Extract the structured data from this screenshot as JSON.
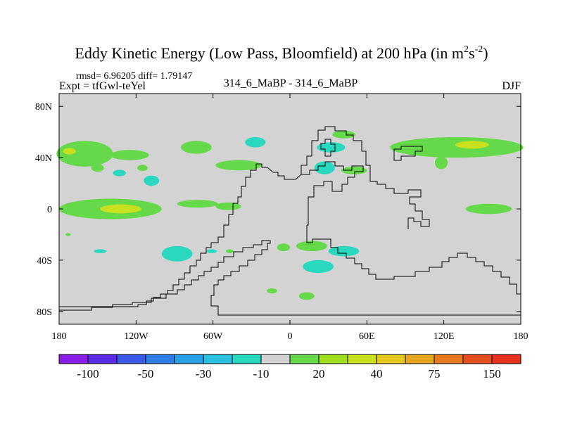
{
  "chart_data": {
    "type": "heatmap",
    "title": "Eddy Kinetic Energy (Low Pass, Bloomfield) at 200 hPa (in m",
    "title_units": {
      "sup1": "2",
      "mid": "s",
      "sup2": "-2",
      "close": ")"
    },
    "stats": "rmsd= 6.96205 diff= 1.79147",
    "expt": "Expt = tfGwl-teYel",
    "subtitle": "314_6_MaBP - 314_6_MaBP",
    "season": "DJF",
    "xlim": [
      -180,
      180
    ],
    "ylim": [
      -90,
      90
    ],
    "x_ticks": [
      {
        "value": -180,
        "label": "180"
      },
      {
        "value": -120,
        "label": "120W"
      },
      {
        "value": -60,
        "label": "60W"
      },
      {
        "value": 0,
        "label": "0"
      },
      {
        "value": 60,
        "label": "60E"
      },
      {
        "value": 120,
        "label": "120E"
      },
      {
        "value": 180,
        "label": "180"
      }
    ],
    "y_ticks": [
      {
        "value": 80,
        "label": "80N"
      },
      {
        "value": 40,
        "label": "40N"
      },
      {
        "value": 0,
        "label": "0"
      },
      {
        "value": -40,
        "label": "40S"
      },
      {
        "value": -80,
        "label": "80S"
      }
    ],
    "background_color": "#d3d3d3",
    "colorbar": {
      "colors": [
        "#8a1ee6",
        "#5a2be6",
        "#3a5ae6",
        "#2d7fe6",
        "#2aa0e6",
        "#2ac0e0",
        "#2ad8c0",
        "#d3d3d3",
        "#66d94a",
        "#9ee01e",
        "#c8e01e",
        "#e6c81e",
        "#e6a51e",
        "#e6781e",
        "#e6501e",
        "#e6321e"
      ],
      "labels": [
        {
          "boundary": 1,
          "text": "-100"
        },
        {
          "boundary": 3,
          "text": "-50"
        },
        {
          "boundary": 5,
          "text": "-30"
        },
        {
          "boundary": 7,
          "text": "-10"
        },
        {
          "boundary": 9,
          "text": "20"
        },
        {
          "boundary": 11,
          "text": "40"
        },
        {
          "boundary": 13,
          "text": "75"
        },
        {
          "boundary": 15,
          "text": "150"
        }
      ]
    },
    "regions": [
      {
        "name": "n-pacific-jet-west",
        "lon": -160,
        "lat": 43,
        "rlon": 22,
        "rlat": 10,
        "color": "#66d94a"
      },
      {
        "name": "n-pacific-jet-west-core",
        "lon": -172,
        "lat": 45,
        "rlon": 5,
        "rlat": 2.5,
        "color": "#c8e01e"
      },
      {
        "name": "n-pacific-jet-mid",
        "lon": -125,
        "lat": 42,
        "rlon": 15,
        "rlat": 4,
        "color": "#66d94a"
      },
      {
        "name": "n-pacific-small-1",
        "lon": -150,
        "lat": 32,
        "rlon": 5,
        "rlat": 3,
        "color": "#66d94a"
      },
      {
        "name": "n-pacific-small-2",
        "lon": -115,
        "lat": 32,
        "rlon": 4,
        "rlat": 2.5,
        "color": "#66d94a"
      },
      {
        "name": "n-pacific-neg-1",
        "lon": -133,
        "lat": 28,
        "rlon": 5,
        "rlat": 2.5,
        "color": "#2ad8c0"
      },
      {
        "name": "n-pacific-neg-2",
        "lon": -108,
        "lat": 22,
        "rlon": 6,
        "rlat": 4,
        "color": "#2ad8c0"
      },
      {
        "name": "n-america-west",
        "lon": -73,
        "lat": 48,
        "rlon": 12,
        "rlat": 5,
        "color": "#66d94a"
      },
      {
        "name": "n-america-neg",
        "lon": -27,
        "lat": 52,
        "rlon": 8,
        "rlat": 4,
        "color": "#2ad8c0"
      },
      {
        "name": "n-atlantic",
        "lon": -40,
        "lat": 34,
        "rlon": 18,
        "rlat": 4,
        "color": "#66d94a"
      },
      {
        "name": "europe-north",
        "lon": 42,
        "lat": 58,
        "rlon": 9,
        "rlat": 3,
        "color": "#66d94a"
      },
      {
        "name": "europe-neg",
        "lon": 32,
        "lat": 48,
        "rlon": 11,
        "rlat": 4,
        "color": "#2ad8c0"
      },
      {
        "name": "mediterranean-neg",
        "lon": 27,
        "lat": 32,
        "rlon": 8,
        "rlat": 5,
        "color": "#2ad8c0"
      },
      {
        "name": "mediterranean-pos",
        "lon": 50,
        "lat": 30,
        "rlon": 10,
        "rlat": 3,
        "color": "#66d94a"
      },
      {
        "name": "asia-jet",
        "lon": 130,
        "lat": 48,
        "rlon": 52,
        "rlat": 8,
        "color": "#66d94a"
      },
      {
        "name": "asia-jet-core",
        "lon": 142,
        "lat": 50,
        "rlon": 13,
        "rlat": 3,
        "color": "#c8e01e"
      },
      {
        "name": "china-small",
        "lon": 118,
        "lat": 36,
        "rlon": 5,
        "rlat": 5,
        "color": "#66d94a"
      },
      {
        "name": "trop-pacific-w",
        "lon": -140,
        "lat": 0,
        "rlon": 40,
        "rlat": 8,
        "color": "#66d94a"
      },
      {
        "name": "trop-pacific-w-core",
        "lon": -132,
        "lat": 0,
        "rlon": 16,
        "rlat": 3.5,
        "color": "#c8e01e"
      },
      {
        "name": "trop-pacific-e",
        "lon": -72,
        "lat": 4,
        "rlon": 16,
        "rlat": 3,
        "color": "#66d94a"
      },
      {
        "name": "trop-pacific-e-2",
        "lon": -48,
        "lat": 2,
        "rlon": 10,
        "rlat": 3,
        "color": "#66d94a"
      },
      {
        "name": "indian-ocean",
        "lon": 155,
        "lat": 0,
        "rlon": 18,
        "rlat": 4,
        "color": "#66d94a"
      },
      {
        "name": "s-pacific-dot",
        "lon": -173,
        "lat": -20,
        "rlon": 2,
        "rlat": 1.2,
        "color": "#66d94a"
      },
      {
        "name": "s-pacific-neg-1",
        "lon": -148,
        "lat": -33,
        "rlon": 5,
        "rlat": 1.5,
        "color": "#2ad8c0"
      },
      {
        "name": "s-pacific-neg-2",
        "lon": -88,
        "lat": -35,
        "rlon": 12,
        "rlat": 6,
        "color": "#2ad8c0"
      },
      {
        "name": "s-pacific-neg-3",
        "lon": -61,
        "lat": -33,
        "rlon": 4,
        "rlat": 1.5,
        "color": "#2ad8c0"
      },
      {
        "name": "s-america-pos",
        "lon": -47,
        "lat": -33,
        "rlon": 3,
        "rlat": 1.5,
        "color": "#66d94a"
      },
      {
        "name": "s-atlantic-pos",
        "lon": -5,
        "lat": -30,
        "rlon": 5,
        "rlat": 3,
        "color": "#66d94a"
      },
      {
        "name": "s-atlantic-pos-2",
        "lon": 17,
        "lat": -29,
        "rlon": 12,
        "rlat": 4,
        "color": "#66d94a"
      },
      {
        "name": "s-africa-neg",
        "lon": 42,
        "lat": -33,
        "rlon": 12,
        "rlat": 4,
        "color": "#2ad8c0"
      },
      {
        "name": "s-atlantic-neg",
        "lon": 22,
        "lat": -45,
        "rlon": 12,
        "rlat": 5,
        "color": "#2ad8c0"
      },
      {
        "name": "s-ocean-pos-1",
        "lon": -14,
        "lat": -64,
        "rlon": 4,
        "rlat": 2,
        "color": "#66d94a"
      },
      {
        "name": "s-ocean-pos-2",
        "lon": 13,
        "lat": -68,
        "rlon": 6,
        "rlat": 3,
        "color": "#66d94a"
      }
    ]
  }
}
